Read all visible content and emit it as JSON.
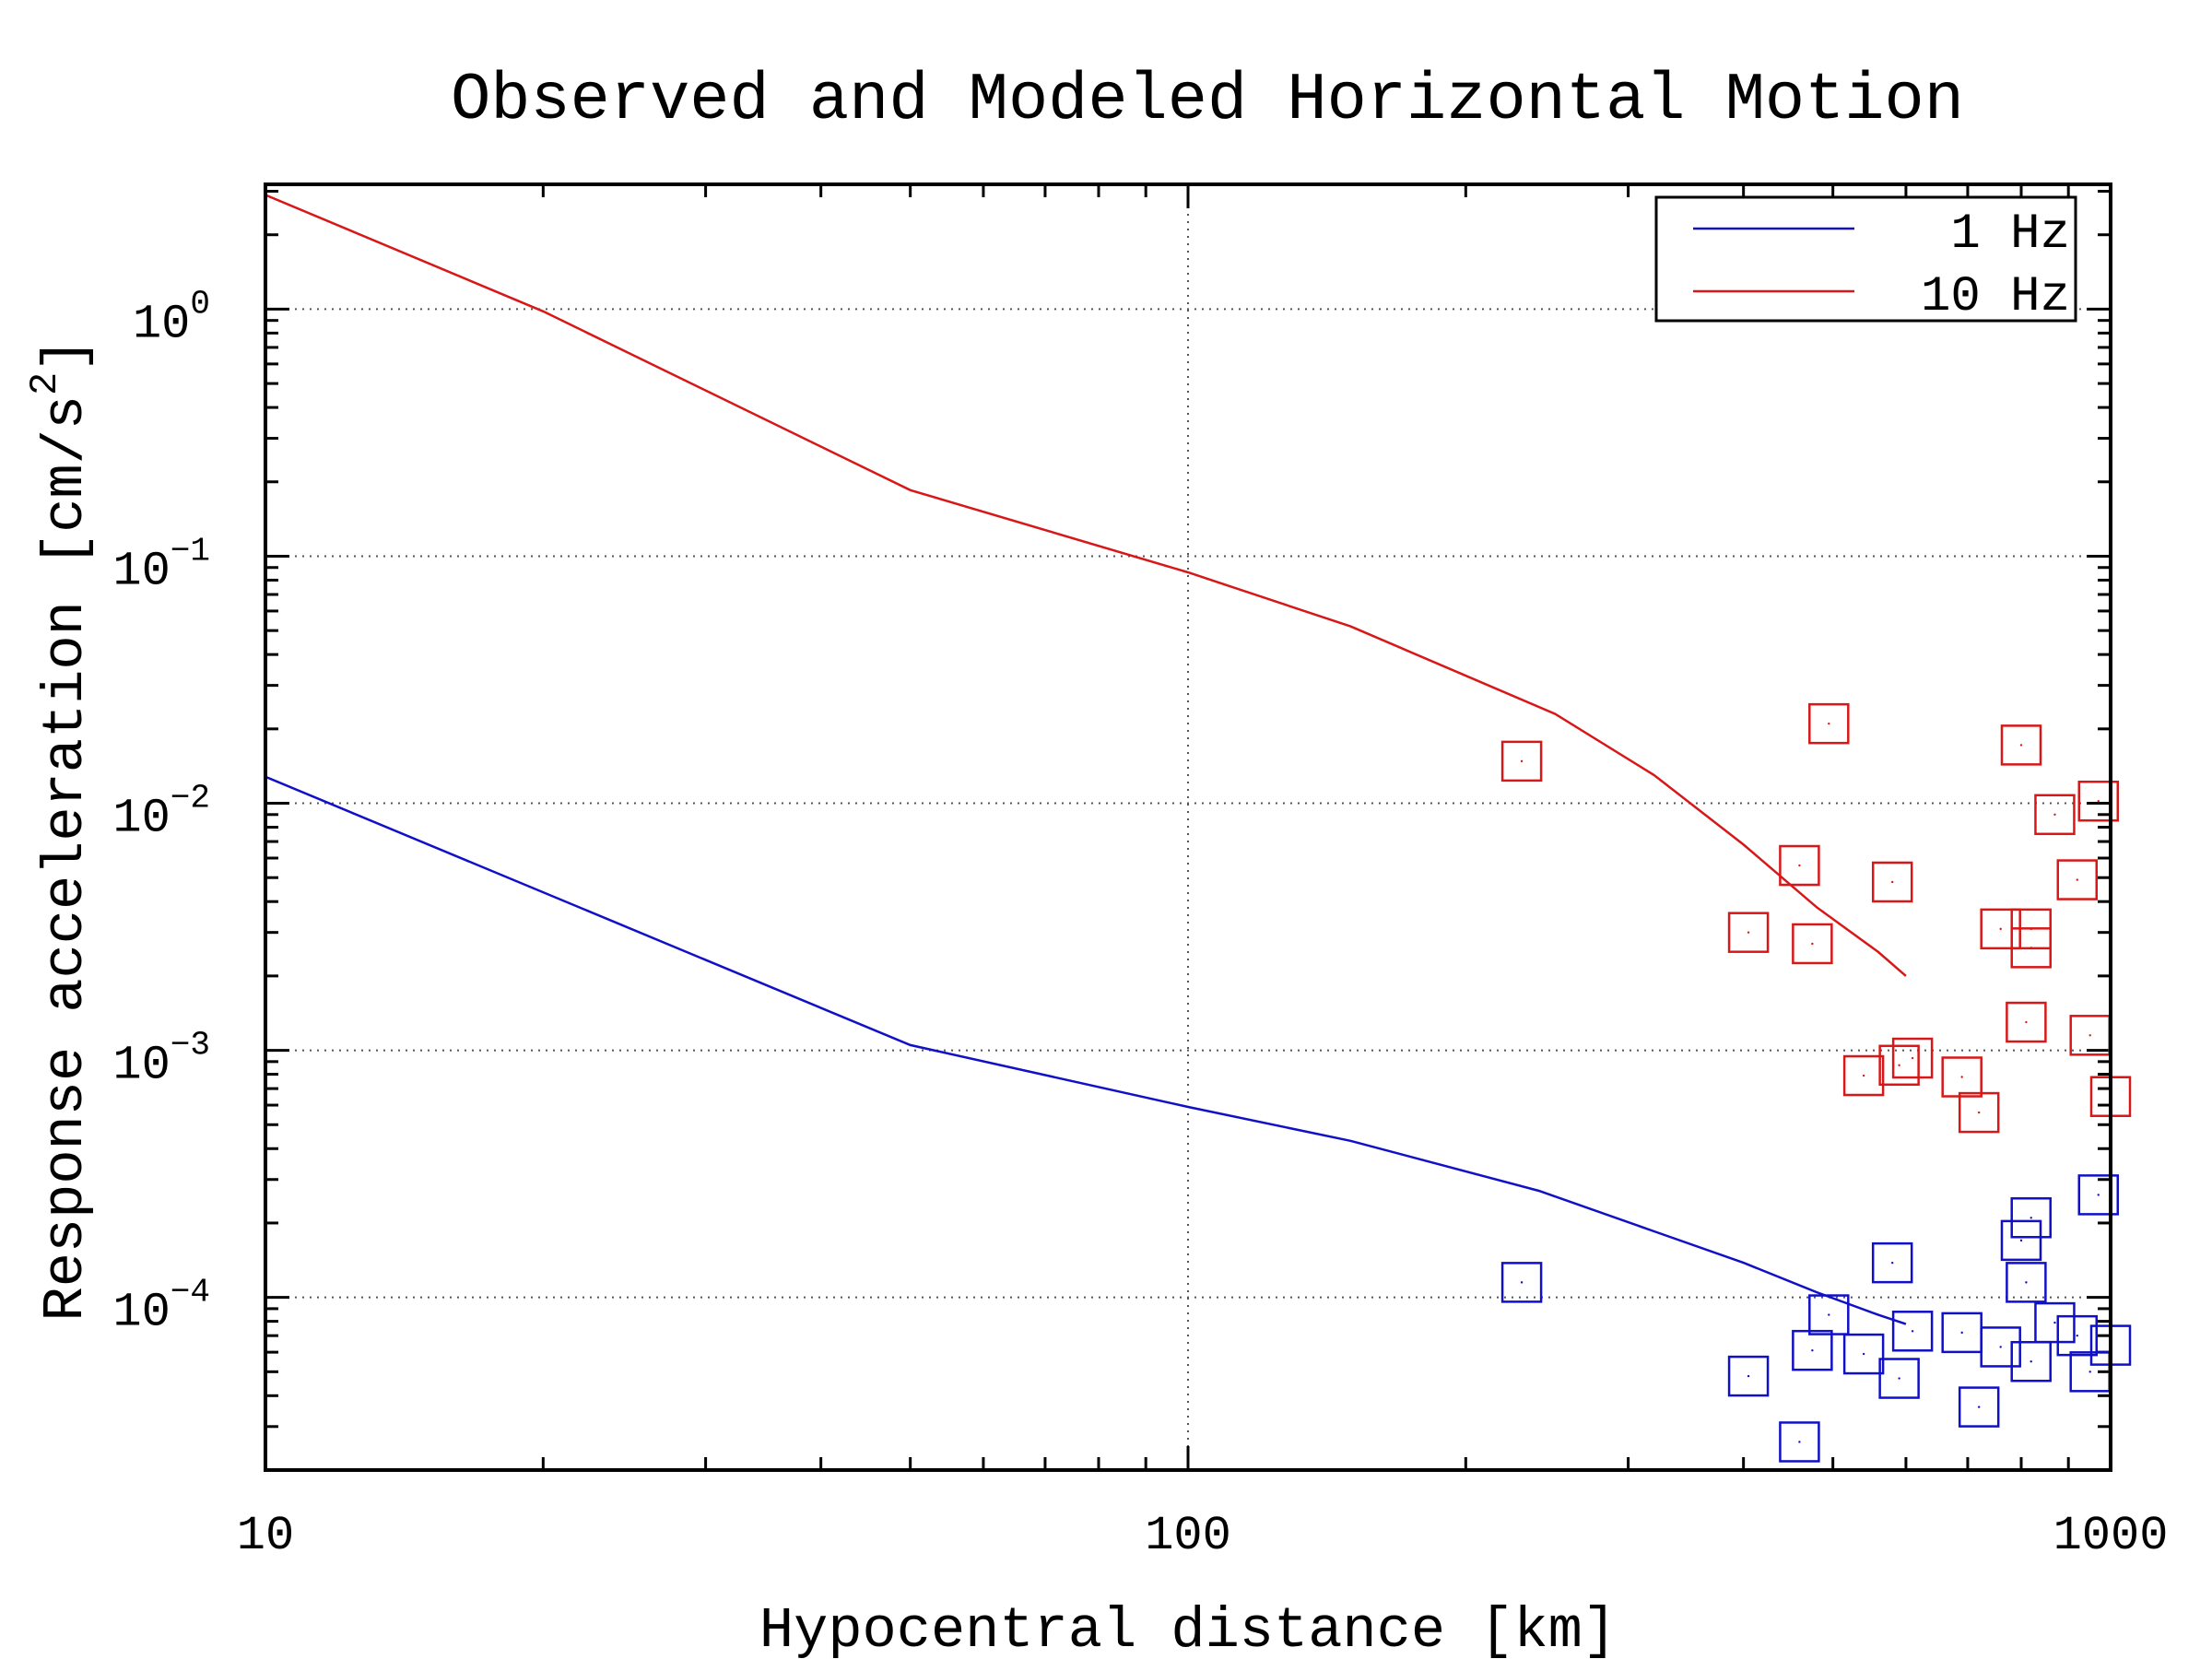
{
  "chart_data": {
    "type": "scatter",
    "title": "Observed and Modeled Horizontal Motion",
    "xlabel": "Hypocentral distance [km]",
    "ylabel": "Response acceleration [cm/s",
    "ylabel_superscript": "2",
    "ylabel_suffix": "]",
    "xscale": "log",
    "yscale": "log",
    "xlim": [
      10,
      1000
    ],
    "ylim": [
      2e-05,
      3.2
    ],
    "grid": true,
    "legend_position": "top-right",
    "x_ticks": [
      {
        "value": 10,
        "label": "10"
      },
      {
        "value": 100,
        "label": "100"
      },
      {
        "value": 1000,
        "label": "1000"
      }
    ],
    "y_ticks": [
      {
        "value": 1,
        "base": "10",
        "exp": "0"
      },
      {
        "value": 0.1,
        "base": "10",
        "exp": "−1"
      },
      {
        "value": 0.01,
        "base": "10",
        "exp": "−2"
      },
      {
        "value": 0.001,
        "base": "10",
        "exp": "−3"
      },
      {
        "value": 0.0001,
        "base": "10",
        "exp": "−4"
      }
    ],
    "series": [
      {
        "name": "1 Hz",
        "color": "#1010c8",
        "model_line": {
          "x": [
            10,
            50,
            100,
            150,
            240,
            320,
            400,
            480,
            560,
            600
          ],
          "y": [
            0.0128,
            0.00105,
            0.00059,
            0.00043,
            0.00027,
            0.000185,
            0.000138,
            0.000105,
            8.5e-05,
            7.8e-05
          ]
        },
        "observed": {
          "x": [
            230,
            405,
            460,
            475,
            495,
            540,
            580,
            590,
            610,
            690,
            720,
            760,
            800,
            810,
            820,
            820,
            870,
            920,
            950,
            970,
            1000
          ],
          "y": [
            0.000115,
            4.8e-05,
            2.6e-05,
            6.1e-05,
            8.5e-05,
            5.9e-05,
            0.000138,
            4.7e-05,
            7.3e-05,
            7.2e-05,
            3.6e-05,
            6.3e-05,
            0.00017,
            0.000115,
            0.00021,
            5.5e-05,
            7.9e-05,
            7e-05,
            5e-05,
            0.00026,
            6.4e-05
          ]
        }
      },
      {
        "name": "10 Hz",
        "color": "#d81818",
        "model_line": {
          "x": [
            10,
            20,
            50,
            100,
            150,
            250,
            320,
            400,
            480,
            560,
            600
          ],
          "y": [
            2.9,
            0.98,
            0.185,
            0.086,
            0.052,
            0.023,
            0.013,
            0.0068,
            0.0038,
            0.0025,
            0.002
          ]
        },
        "observed": {
          "x": [
            230,
            405,
            460,
            475,
            495,
            540,
            580,
            590,
            610,
            690,
            720,
            760,
            800,
            810,
            820,
            820,
            870,
            920,
            950,
            970,
            1000
          ],
          "y": [
            0.0148,
            0.003,
            0.0056,
            0.0027,
            0.021,
            0.00079,
            0.0048,
            0.00087,
            0.00093,
            0.00078,
            0.00056,
            0.0031,
            0.0172,
            0.0013,
            0.0031,
            0.0026,
            0.009,
            0.0049,
            0.00115,
            0.0102,
            0.00065
          ]
        }
      }
    ]
  }
}
